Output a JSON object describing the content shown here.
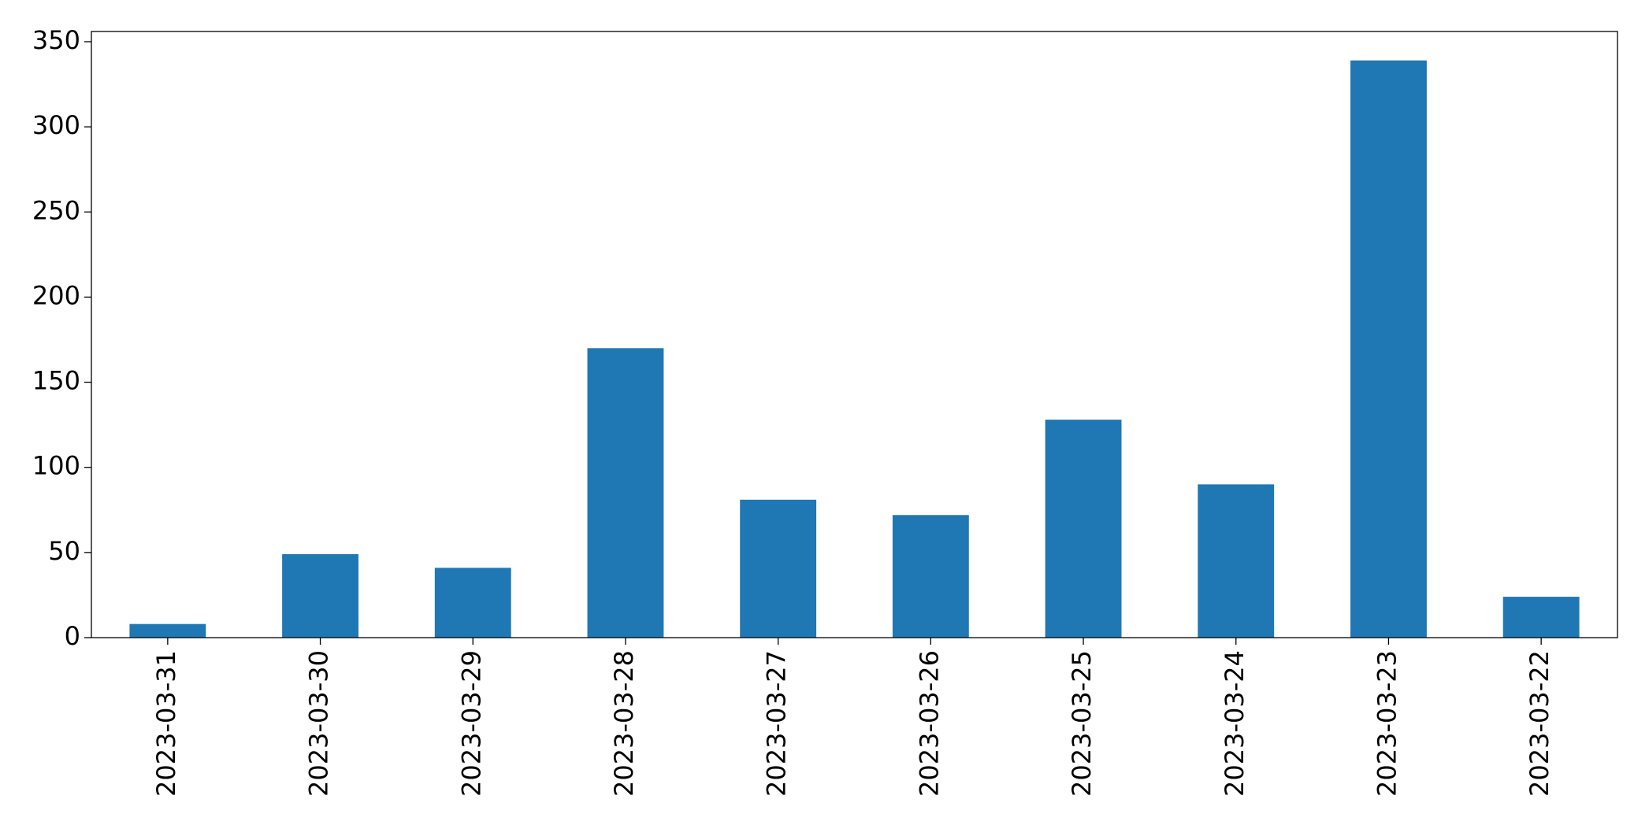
{
  "chart_data": {
    "type": "bar",
    "categories": [
      "2023-03-31",
      "2023-03-30",
      "2023-03-29",
      "2023-03-28",
      "2023-03-27",
      "2023-03-26",
      "2023-03-25",
      "2023-03-24",
      "2023-03-23",
      "2023-03-22"
    ],
    "values": [
      8,
      49,
      41,
      170,
      81,
      72,
      128,
      90,
      339,
      24
    ],
    "color": "#1f77b4",
    "ylim": [
      0,
      356
    ],
    "yticks": [
      0,
      50,
      100,
      150,
      200,
      250,
      300,
      350
    ],
    "grid": false
  }
}
